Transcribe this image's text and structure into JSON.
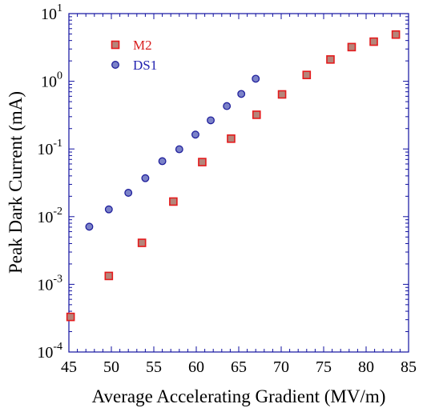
{
  "chart_data": {
    "type": "scatter",
    "xlabel": "Average Accelerating Gradient (MV/m)",
    "ylabel": "Peak Dark Current (mA)",
    "xlim": [
      45,
      85
    ],
    "ylim": [
      0.0001,
      10
    ],
    "yscale": "log",
    "x_ticks": [
      "45",
      "50",
      "55",
      "60",
      "65",
      "70",
      "75",
      "80",
      "85"
    ],
    "y_ticks": [
      {
        "base": "10",
        "exp": "-4",
        "value": 0.0001
      },
      {
        "base": "10",
        "exp": "-3",
        "value": 0.001
      },
      {
        "base": "10",
        "exp": "-2",
        "value": 0.01
      },
      {
        "base": "10",
        "exp": "-1",
        "value": 0.1
      },
      {
        "base": "10",
        "exp": "0",
        "value": 1
      },
      {
        "base": "10",
        "exp": "1",
        "value": 10
      }
    ],
    "grid": false,
    "legend_position": "top-left",
    "series": [
      {
        "name": "M2",
        "marker": "square",
        "color": "#e41a1c",
        "fill": "#b5857a",
        "text_color": "#d81e1e",
        "points": [
          [
            45.2,
            0.00033
          ],
          [
            49.7,
            0.00133
          ],
          [
            53.6,
            0.0041
          ],
          [
            57.3,
            0.0167
          ],
          [
            60.7,
            0.064
          ],
          [
            64.1,
            0.142
          ],
          [
            67.1,
            0.32
          ],
          [
            70.1,
            0.64
          ],
          [
            73.0,
            1.24
          ],
          [
            75.8,
            2.1
          ],
          [
            78.3,
            3.2
          ],
          [
            80.9,
            3.85
          ],
          [
            83.5,
            4.9
          ]
        ]
      },
      {
        "name": "DS1",
        "marker": "circle",
        "color": "#1f1f9c",
        "fill": "#7b82c8",
        "text_color": "#2222b0",
        "points": [
          [
            47.4,
            0.0071
          ],
          [
            49.7,
            0.0128
          ],
          [
            52.0,
            0.0225
          ],
          [
            54.0,
            0.037
          ],
          [
            56.0,
            0.066
          ],
          [
            58.0,
            0.099
          ],
          [
            59.9,
            0.163
          ],
          [
            61.7,
            0.265
          ],
          [
            63.6,
            0.43
          ],
          [
            65.3,
            0.65
          ],
          [
            67.0,
            1.09
          ]
        ]
      }
    ]
  }
}
